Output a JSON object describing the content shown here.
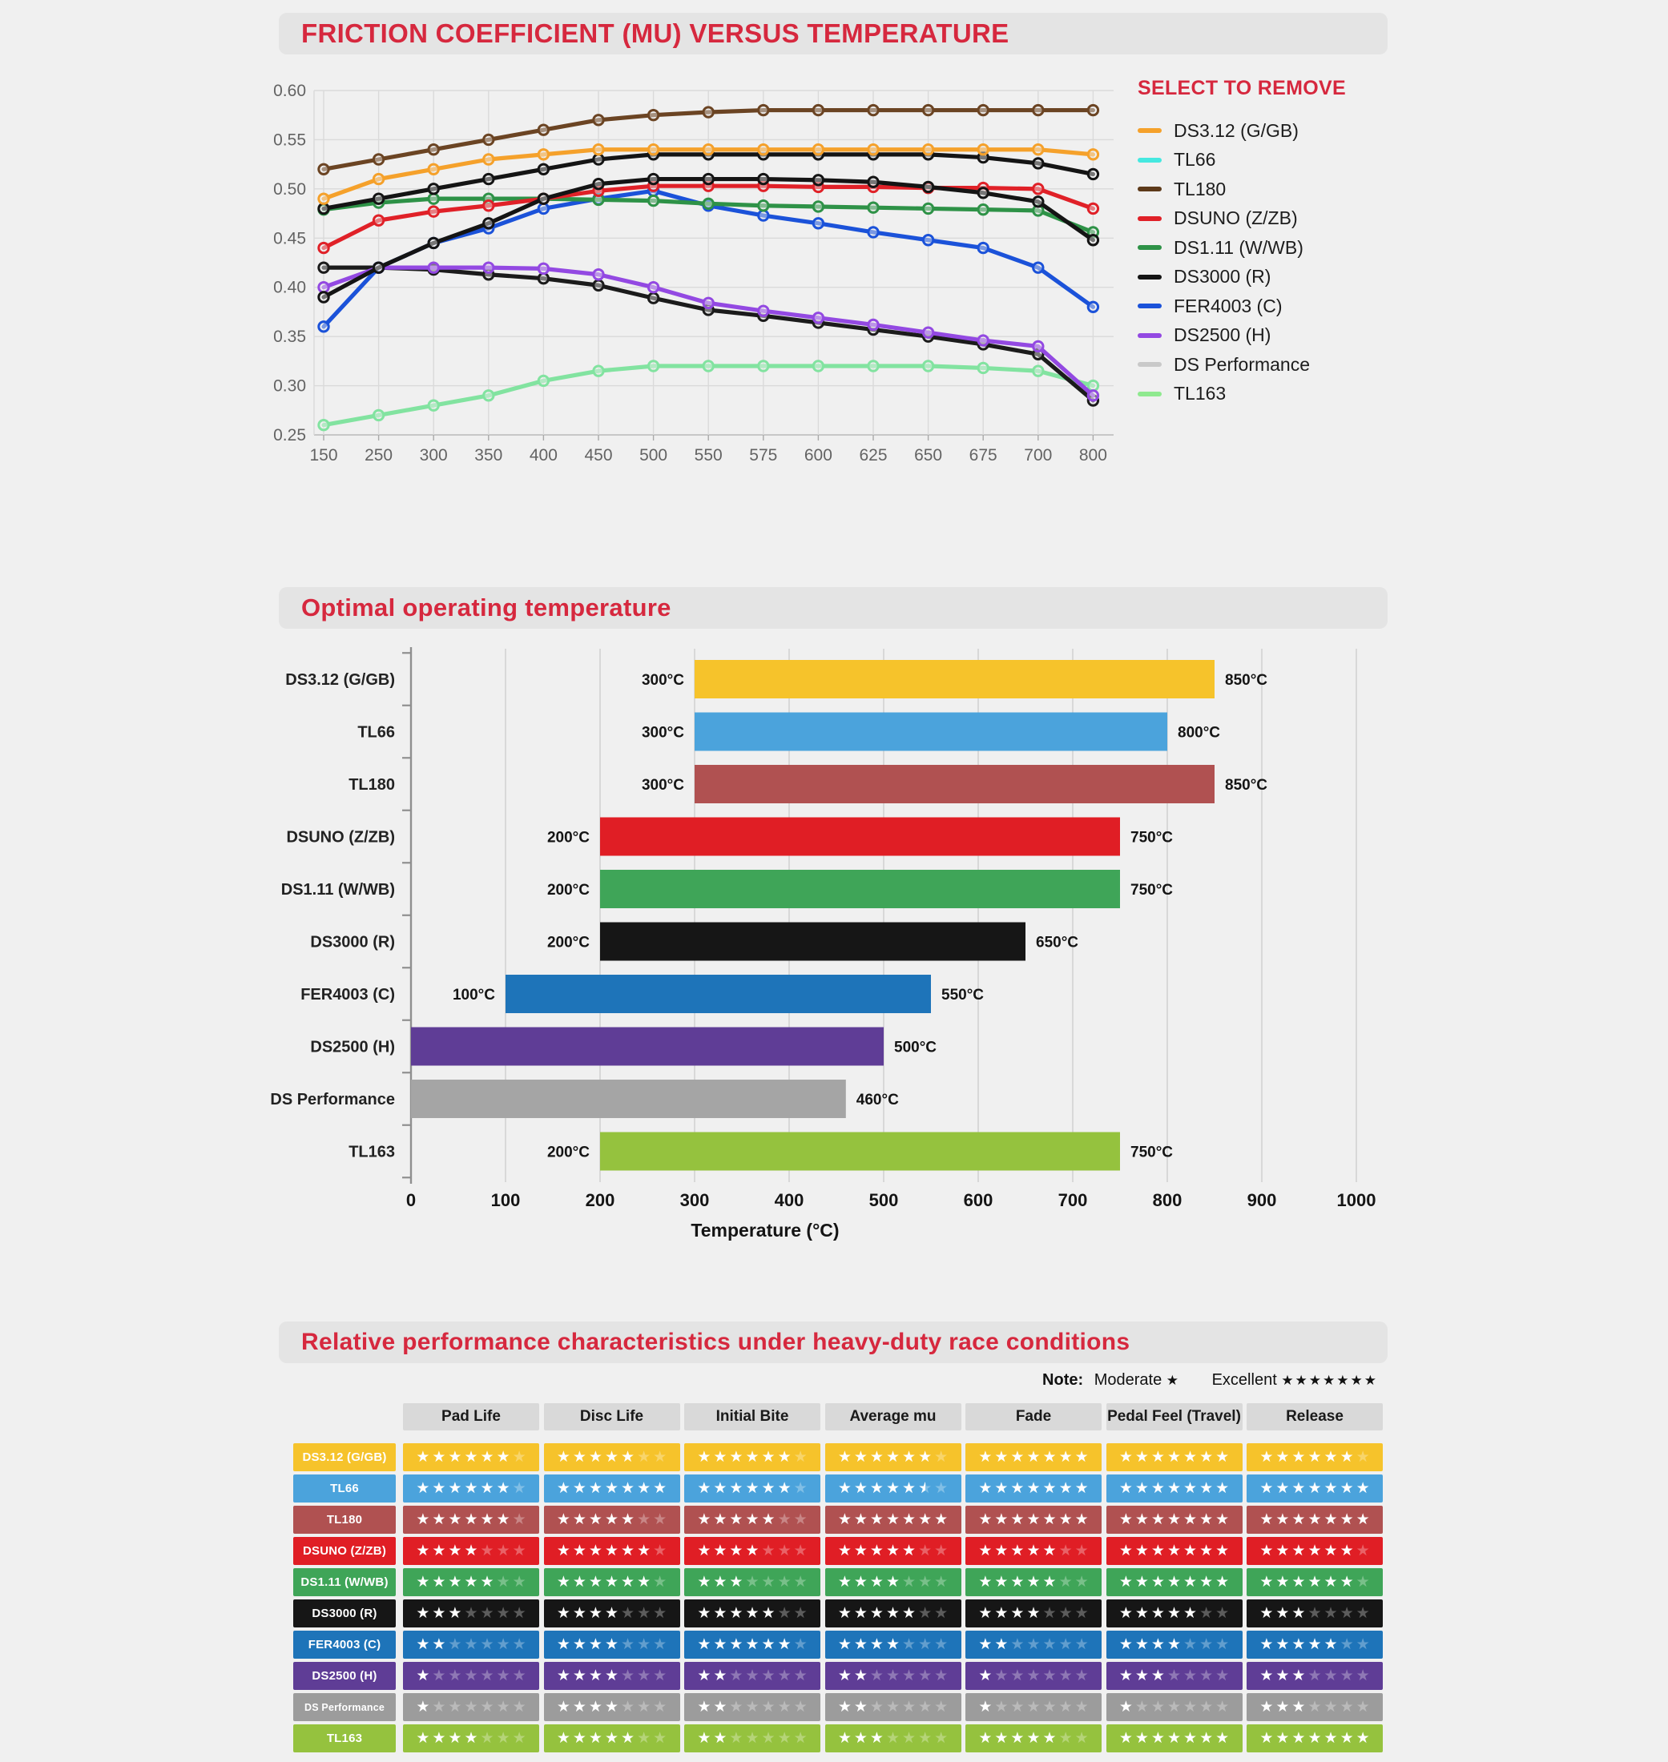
{
  "page": {
    "bg": "#F0F0F0",
    "accent_red": "#D6283E",
    "banner_bg": "#E4E4E4"
  },
  "sections": {
    "friction": {
      "title": "FRICTION COEFFICIENT (MU) VERSUS TEMPERATURE"
    },
    "optimal": {
      "title": "Optimal operating temperature"
    },
    "relative": {
      "title": "Relative performance characteristics under heavy-duty race conditions"
    }
  },
  "legend": {
    "title": "SELECT TO REMOVE"
  },
  "chart_data": [
    {
      "type": "line",
      "title": "FRICTION COEFFICIENT (MU) VERSUS TEMPERATURE",
      "x_labels": [
        "150",
        "250",
        "300",
        "350",
        "400",
        "450",
        "500",
        "550",
        "575",
        "600",
        "625",
        "650",
        "675",
        "700",
        "800"
      ],
      "y_ticks": [
        "0.60",
        "0.55",
        "0.50",
        "0.45",
        "0.40",
        "0.35",
        "0.30",
        "0.25"
      ],
      "ylim": [
        0.25,
        0.6
      ],
      "grid": true,
      "legend_position": "right",
      "draw_order": [
        9,
        8,
        7,
        6,
        4,
        3,
        5,
        1,
        0,
        2
      ],
      "series": [
        {
          "name": "DS3.12 (G/GB)",
          "legend_color": "#F5A12B",
          "line_color": "#F5A12B",
          "values": [
            0.49,
            0.51,
            0.52,
            0.53,
            0.535,
            0.54,
            0.54,
            0.54,
            0.54,
            0.54,
            0.54,
            0.54,
            0.54,
            0.54,
            0.535
          ]
        },
        {
          "name": "TL66",
          "legend_color": "#45E8E0",
          "line_color": "#141414",
          "values": [
            0.48,
            0.49,
            0.5,
            0.51,
            0.52,
            0.53,
            0.535,
            0.535,
            0.535,
            0.535,
            0.535,
            0.535,
            0.532,
            0.526,
            0.515
          ]
        },
        {
          "name": "TL180",
          "legend_color": "#5D3A1A",
          "line_color": "#6B4423",
          "values": [
            0.52,
            0.53,
            0.54,
            0.55,
            0.56,
            0.57,
            0.575,
            0.578,
            0.58,
            0.58,
            0.58,
            0.58,
            0.58,
            0.58,
            0.58
          ]
        },
        {
          "name": "DSUNO (Z/ZB)",
          "legend_color": "#E02128",
          "line_color": "#E02128",
          "values": [
            0.44,
            0.468,
            0.477,
            0.483,
            0.49,
            0.498,
            0.503,
            0.503,
            0.503,
            0.502,
            0.502,
            0.501,
            0.501,
            0.5,
            0.48
          ]
        },
        {
          "name": "DS1.11 (W/WB)",
          "legend_color": "#2E9247",
          "line_color": "#2E9247",
          "values": [
            0.479,
            0.486,
            0.49,
            0.49,
            0.49,
            0.489,
            0.488,
            0.485,
            0.483,
            0.482,
            0.481,
            0.48,
            0.479,
            0.478,
            0.456
          ]
        },
        {
          "name": "DS3000 (R)",
          "legend_color": "#141414",
          "line_color": "#141414",
          "values": [
            0.39,
            0.42,
            0.445,
            0.465,
            0.49,
            0.505,
            0.51,
            0.51,
            0.51,
            0.509,
            0.507,
            0.502,
            0.496,
            0.487,
            0.448
          ]
        },
        {
          "name": "FER4003 (C)",
          "legend_color": "#1B52D9",
          "line_color": "#1B52D9",
          "values": [
            0.36,
            0.42,
            0.445,
            0.46,
            0.48,
            0.49,
            0.498,
            0.483,
            0.473,
            0.465,
            0.456,
            0.448,
            0.44,
            0.42,
            0.38
          ]
        },
        {
          "name": "DS2500 (H)",
          "legend_color": "#9349E2",
          "line_color": "#9349E2",
          "values": [
            0.4,
            0.42,
            0.42,
            0.42,
            0.419,
            0.413,
            0.4,
            0.384,
            0.376,
            0.369,
            0.362,
            0.354,
            0.346,
            0.34,
            0.29
          ]
        },
        {
          "name": "DS Performance",
          "legend_color": "#C9C9C9",
          "line_color": "#1B1B1B",
          "values": [
            0.42,
            0.42,
            0.418,
            0.413,
            0.409,
            0.402,
            0.389,
            0.377,
            0.371,
            0.364,
            0.357,
            0.35,
            0.342,
            0.332,
            0.285
          ]
        },
        {
          "name": "TL163",
          "legend_color": "#8FE98F",
          "line_color": "#82E3A0",
          "values": [
            0.26,
            0.27,
            0.28,
            0.29,
            0.305,
            0.315,
            0.32,
            0.32,
            0.32,
            0.32,
            0.32,
            0.32,
            0.318,
            0.315,
            0.3
          ]
        }
      ]
    },
    {
      "type": "bar",
      "orientation": "horizontal-range",
      "title": "Optimal operating temperature",
      "xlabel": "Temperature (°C)",
      "xlim": [
        0,
        1000
      ],
      "x_ticks": [
        0,
        100,
        200,
        300,
        400,
        500,
        600,
        700,
        800,
        900,
        1000
      ],
      "bars": [
        {
          "name": "DS3.12 (G/GB)",
          "start": 300,
          "end": 850,
          "start_label": "300°C",
          "end_label": "850°C",
          "color": "#F6C32B"
        },
        {
          "name": "TL66",
          "start": 300,
          "end": 800,
          "start_label": "300°C",
          "end_label": "800°C",
          "color": "#4BA3DC"
        },
        {
          "name": "TL180",
          "start": 300,
          "end": 850,
          "start_label": "300°C",
          "end_label": "850°C",
          "color": "#B05151"
        },
        {
          "name": "DSUNO (Z/ZB)",
          "start": 200,
          "end": 750,
          "start_label": "200°C",
          "end_label": "750°C",
          "color": "#E01E25"
        },
        {
          "name": "DS1.11 (W/WB)",
          "start": 200,
          "end": 750,
          "start_label": "200°C",
          "end_label": "750°C",
          "color": "#3FA558"
        },
        {
          "name": "DS3000 (R)",
          "start": 200,
          "end": 650,
          "start_label": "200°C",
          "end_label": "650°C",
          "color": "#161616"
        },
        {
          "name": "FER4003 (C)",
          "start": 100,
          "end": 550,
          "start_label": "100°C",
          "end_label": "550°C",
          "color": "#1E74B9"
        },
        {
          "name": "DS2500 (H)",
          "start": 0,
          "end": 500,
          "start_label": "",
          "end_label": "500°C",
          "color": "#5F3D96"
        },
        {
          "name": "DS Performance",
          "start": 0,
          "end": 460,
          "start_label": "",
          "end_label": "460°C",
          "color": "#A5A5A5"
        },
        {
          "name": "TL163",
          "start": 200,
          "end": 750,
          "start_label": "200°C",
          "end_label": "750°C",
          "color": "#95C23E"
        }
      ]
    }
  ],
  "note": {
    "label": "Note:",
    "moderate_text": "Moderate",
    "moderate_stars": 1,
    "excellent_text": "Excellent",
    "excellent_stars": 7
  },
  "table": {
    "max_stars": 7,
    "columns": [
      "Pad Life",
      "Disc Life",
      "Initial Bite",
      "Average mu",
      "Fade",
      "Pedal Feel (Travel)",
      "Release"
    ],
    "rows": [
      {
        "name": "DS3.12 (G/GB)",
        "color": "#F6C32B",
        "ratings": [
          6,
          5,
          6,
          6,
          7,
          7,
          6
        ]
      },
      {
        "name": "TL66",
        "color": "#4BA3DC",
        "ratings": [
          6,
          7,
          6,
          5.5,
          7,
          7,
          7
        ]
      },
      {
        "name": "TL180",
        "color": "#B05151",
        "ratings": [
          6,
          5,
          5,
          7,
          7,
          7,
          7
        ]
      },
      {
        "name": "DSUNO (Z/ZB)",
        "color": "#E01E25",
        "ratings": [
          4,
          6,
          4,
          5,
          5,
          7,
          6
        ]
      },
      {
        "name": "DS1.11 (W/WB)",
        "color": "#3FA558",
        "ratings": [
          5,
          6,
          3,
          4,
          5,
          7,
          6
        ]
      },
      {
        "name": "DS3000 (R)",
        "color": "#161616",
        "ratings": [
          3,
          4,
          5,
          5,
          4,
          5,
          3
        ]
      },
      {
        "name": "FER4003 (C)",
        "color": "#1E74B9",
        "ratings": [
          2,
          4,
          6,
          4,
          2,
          4,
          5
        ]
      },
      {
        "name": "DS2500 (H)",
        "color": "#5F3D96",
        "ratings": [
          1,
          4,
          2,
          2,
          1,
          3,
          3
        ]
      },
      {
        "name": "DS Performance",
        "color": "#9C9C9C",
        "ratings": [
          1,
          4,
          2,
          2,
          1,
          1,
          3
        ]
      },
      {
        "name": "TL163",
        "color": "#95C23E",
        "ratings": [
          4,
          5,
          2,
          3,
          5,
          7,
          7
        ]
      }
    ]
  }
}
